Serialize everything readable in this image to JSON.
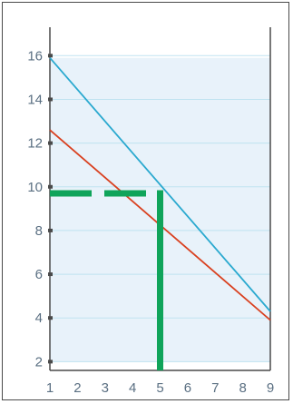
{
  "chart_data": {
    "type": "line",
    "title": "",
    "xlabel": "",
    "ylabel": "",
    "xlim": [
      1,
      9
    ],
    "ylim": [
      1.6,
      17.3
    ],
    "xticks": [
      1,
      2,
      3,
      4,
      5,
      6,
      7,
      8,
      9
    ],
    "yticks": [
      2,
      4,
      6,
      8,
      10,
      12,
      14,
      16
    ],
    "grid": true,
    "series": [
      {
        "color": "#2aa9cf",
        "x": [
          1,
          9
        ],
        "y": [
          15.9,
          4.3
        ]
      },
      {
        "color": "#d9401f",
        "x": [
          1,
          9
        ],
        "y": [
          12.6,
          3.9
        ]
      }
    ],
    "shaded_region": {
      "color": "#e8f2fa",
      "y": [
        2,
        15.9
      ]
    },
    "guides": {
      "color": "#0fa45a",
      "horizontal": {
        "y": 9.7,
        "x": [
          1,
          5
        ],
        "style": "dashed"
      },
      "vertical": {
        "x": 5,
        "y": [
          1.6,
          9.7
        ],
        "style": "solid"
      }
    }
  }
}
